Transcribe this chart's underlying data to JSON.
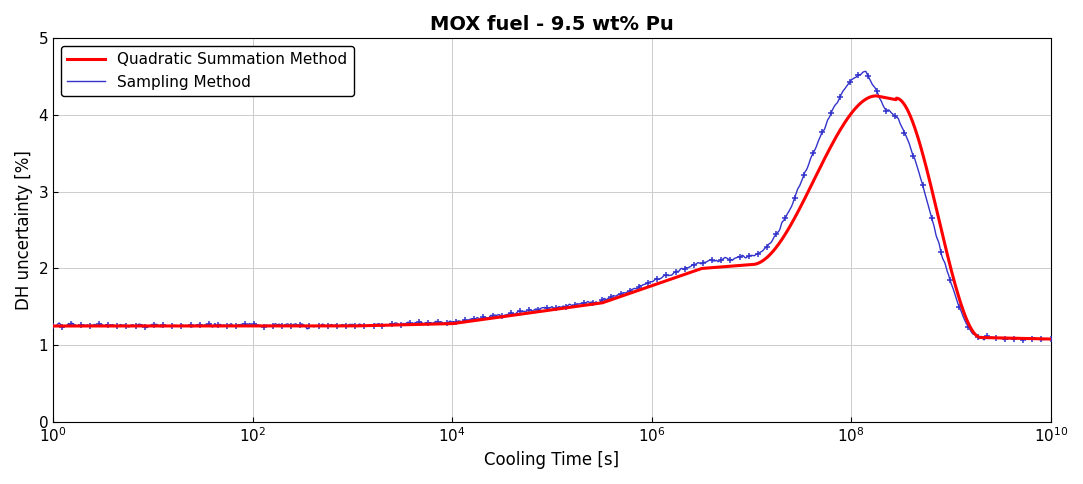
{
  "title": "MOX fuel - 9.5 wt% Pu",
  "xlabel": "Cooling Time [s]",
  "ylabel": "DH uncertainty [%]",
  "xlim": [
    1.0,
    10000000000.0
  ],
  "ylim": [
    0,
    5
  ],
  "yticks": [
    0,
    1,
    2,
    3,
    4,
    5
  ],
  "red_label": "Quadratic Summation Method",
  "blue_label": "Sampling Method",
  "red_color": "#ff0000",
  "blue_color": "#3333cc",
  "red_linewidth": 2.2,
  "blue_linewidth": 1.0,
  "background_color": "#ffffff",
  "grid_color": "#cccccc",
  "title_fontsize": 14,
  "label_fontsize": 12,
  "legend_fontsize": 11
}
